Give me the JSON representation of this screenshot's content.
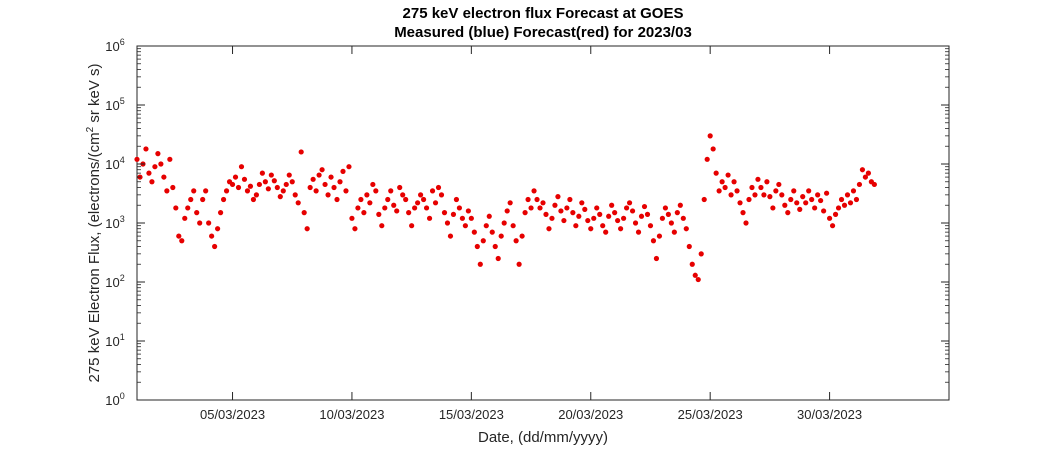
{
  "chart_data": {
    "type": "scatter",
    "title": "275 keV electron flux Forecast at GOES",
    "subtitle": "Measured (blue) Forecast(red) for 2023/03",
    "xlabel": "Date, (dd/mm/yyyy)",
    "ylabel_parts": [
      "275 keV Electron Flux, (electrons/(cm",
      "2",
      " sr keV s)"
    ],
    "y_scale": "log",
    "ylim": [
      1,
      1000000
    ],
    "xlim": [
      "2023-03-01",
      "2023-04-04"
    ],
    "x_ticks": [
      "05/03/2023",
      "10/03/2023",
      "15/03/2023",
      "20/03/2023",
      "25/03/2023",
      "30/03/2023"
    ],
    "y_ticks": [
      {
        "base": "10",
        "exp": "0"
      },
      {
        "base": "10",
        "exp": "1"
      },
      {
        "base": "10",
        "exp": "2"
      },
      {
        "base": "10",
        "exp": "3"
      },
      {
        "base": "10",
        "exp": "4"
      },
      {
        "base": "10",
        "exp": "5"
      },
      {
        "base": "10",
        "exp": "6"
      }
    ],
    "grid": false,
    "series": [
      {
        "color": "#e60000",
        "points": [
          [
            "2023-03-01 00:00",
            12000
          ],
          [
            "2023-03-01 03:00",
            6000
          ],
          [
            "2023-03-01 06:00",
            10000
          ],
          [
            "2023-03-01 09:00",
            18000
          ],
          [
            "2023-03-01 12:00",
            7000
          ],
          [
            "2023-03-01 15:00",
            5000
          ],
          [
            "2023-03-01 18:00",
            9000
          ],
          [
            "2023-03-01 21:00",
            15000
          ],
          [
            "2023-03-02 00:00",
            10000
          ],
          [
            "2023-03-02 03:00",
            6000
          ],
          [
            "2023-03-02 06:00",
            3500
          ],
          [
            "2023-03-02 09:00",
            12000
          ],
          [
            "2023-03-02 12:00",
            4000
          ],
          [
            "2023-03-02 15:00",
            1800
          ],
          [
            "2023-03-02 18:00",
            600
          ],
          [
            "2023-03-02 21:00",
            500
          ],
          [
            "2023-03-03 00:00",
            1200
          ],
          [
            "2023-03-03 03:00",
            1800
          ],
          [
            "2023-03-03 06:00",
            2500
          ],
          [
            "2023-03-03 09:00",
            3500
          ],
          [
            "2023-03-03 12:00",
            1500
          ],
          [
            "2023-03-03 15:00",
            1000
          ],
          [
            "2023-03-03 18:00",
            2500
          ],
          [
            "2023-03-03 21:00",
            3500
          ],
          [
            "2023-03-04 00:00",
            1000
          ],
          [
            "2023-03-04 03:00",
            600
          ],
          [
            "2023-03-04 06:00",
            400
          ],
          [
            "2023-03-04 09:00",
            800
          ],
          [
            "2023-03-04 12:00",
            1500
          ],
          [
            "2023-03-04 15:00",
            2500
          ],
          [
            "2023-03-04 18:00",
            3500
          ],
          [
            "2023-03-04 21:00",
            5000
          ],
          [
            "2023-03-05 00:00",
            4500
          ],
          [
            "2023-03-05 03:00",
            6000
          ],
          [
            "2023-03-05 06:00",
            4000
          ],
          [
            "2023-03-05 09:00",
            9000
          ],
          [
            "2023-03-05 12:00",
            5500
          ],
          [
            "2023-03-05 15:00",
            3500
          ],
          [
            "2023-03-05 18:00",
            4200
          ],
          [
            "2023-03-05 21:00",
            2500
          ],
          [
            "2023-03-06 00:00",
            3000
          ],
          [
            "2023-03-06 03:00",
            4500
          ],
          [
            "2023-03-06 06:00",
            7000
          ],
          [
            "2023-03-06 09:00",
            5000
          ],
          [
            "2023-03-06 12:00",
            3800
          ],
          [
            "2023-03-06 15:00",
            6500
          ],
          [
            "2023-03-06 18:00",
            5200
          ],
          [
            "2023-03-06 21:00",
            4000
          ],
          [
            "2023-03-07 00:00",
            2800
          ],
          [
            "2023-03-07 03:00",
            3500
          ],
          [
            "2023-03-07 06:00",
            4500
          ],
          [
            "2023-03-07 09:00",
            6500
          ],
          [
            "2023-03-07 12:00",
            5000
          ],
          [
            "2023-03-07 15:00",
            3000
          ],
          [
            "2023-03-07 18:00",
            2200
          ],
          [
            "2023-03-07 21:00",
            16000
          ],
          [
            "2023-03-08 00:00",
            1500
          ],
          [
            "2023-03-08 03:00",
            800
          ],
          [
            "2023-03-08 06:00",
            4000
          ],
          [
            "2023-03-08 09:00",
            5500
          ],
          [
            "2023-03-08 12:00",
            3500
          ],
          [
            "2023-03-08 15:00",
            6500
          ],
          [
            "2023-03-08 18:00",
            8000
          ],
          [
            "2023-03-08 21:00",
            4500
          ],
          [
            "2023-03-09 00:00",
            3000
          ],
          [
            "2023-03-09 03:00",
            6000
          ],
          [
            "2023-03-09 06:00",
            4000
          ],
          [
            "2023-03-09 09:00",
            2500
          ],
          [
            "2023-03-09 12:00",
            5000
          ],
          [
            "2023-03-09 15:00",
            7500
          ],
          [
            "2023-03-09 18:00",
            3500
          ],
          [
            "2023-03-09 21:00",
            9000
          ],
          [
            "2023-03-10 00:00",
            1200
          ],
          [
            "2023-03-10 03:00",
            800
          ],
          [
            "2023-03-10 06:00",
            1800
          ],
          [
            "2023-03-10 09:00",
            2500
          ],
          [
            "2023-03-10 12:00",
            1500
          ],
          [
            "2023-03-10 15:00",
            3000
          ],
          [
            "2023-03-10 18:00",
            2200
          ],
          [
            "2023-03-10 21:00",
            4500
          ],
          [
            "2023-03-11 00:00",
            3500
          ],
          [
            "2023-03-11 03:00",
            1400
          ],
          [
            "2023-03-11 06:00",
            900
          ],
          [
            "2023-03-11 09:00",
            1800
          ],
          [
            "2023-03-11 12:00",
            2500
          ],
          [
            "2023-03-11 15:00",
            3500
          ],
          [
            "2023-03-11 18:00",
            2000
          ],
          [
            "2023-03-11 21:00",
            1600
          ],
          [
            "2023-03-12 00:00",
            4000
          ],
          [
            "2023-03-12 03:00",
            3000
          ],
          [
            "2023-03-12 06:00",
            2500
          ],
          [
            "2023-03-12 09:00",
            1500
          ],
          [
            "2023-03-12 12:00",
            900
          ],
          [
            "2023-03-12 15:00",
            1800
          ],
          [
            "2023-03-12 18:00",
            2200
          ],
          [
            "2023-03-12 21:00",
            3000
          ],
          [
            "2023-03-13 00:00",
            2500
          ],
          [
            "2023-03-13 03:00",
            1800
          ],
          [
            "2023-03-13 06:00",
            1200
          ],
          [
            "2023-03-13 09:00",
            3500
          ],
          [
            "2023-03-13 12:00",
            2200
          ],
          [
            "2023-03-13 15:00",
            4000
          ],
          [
            "2023-03-13 18:00",
            3000
          ],
          [
            "2023-03-13 21:00",
            1500
          ],
          [
            "2023-03-14 00:00",
            1000
          ],
          [
            "2023-03-14 03:00",
            600
          ],
          [
            "2023-03-14 06:00",
            1400
          ],
          [
            "2023-03-14 09:00",
            2500
          ],
          [
            "2023-03-14 12:00",
            1800
          ],
          [
            "2023-03-14 15:00",
            1200
          ],
          [
            "2023-03-14 18:00",
            900
          ],
          [
            "2023-03-14 21:00",
            1600
          ],
          [
            "2023-03-15 00:00",
            1200
          ],
          [
            "2023-03-15 03:00",
            700
          ],
          [
            "2023-03-15 06:00",
            400
          ],
          [
            "2023-03-15 09:00",
            200
          ],
          [
            "2023-03-15 12:00",
            500
          ],
          [
            "2023-03-15 15:00",
            900
          ],
          [
            "2023-03-15 18:00",
            1300
          ],
          [
            "2023-03-15 21:00",
            700
          ],
          [
            "2023-03-16 00:00",
            400
          ],
          [
            "2023-03-16 03:00",
            250
          ],
          [
            "2023-03-16 06:00",
            600
          ],
          [
            "2023-03-16 09:00",
            1000
          ],
          [
            "2023-03-16 12:00",
            1600
          ],
          [
            "2023-03-16 15:00",
            2200
          ],
          [
            "2023-03-16 18:00",
            900
          ],
          [
            "2023-03-16 21:00",
            500
          ],
          [
            "2023-03-17 00:00",
            200
          ],
          [
            "2023-03-17 03:00",
            600
          ],
          [
            "2023-03-17 06:00",
            1500
          ],
          [
            "2023-03-17 09:00",
            2500
          ],
          [
            "2023-03-17 12:00",
            1800
          ],
          [
            "2023-03-17 15:00",
            3500
          ],
          [
            "2023-03-17 18:00",
            2500
          ],
          [
            "2023-03-17 21:00",
            1800
          ],
          [
            "2023-03-18 00:00",
            2200
          ],
          [
            "2023-03-18 03:00",
            1400
          ],
          [
            "2023-03-18 06:00",
            800
          ],
          [
            "2023-03-18 09:00",
            1200
          ],
          [
            "2023-03-18 12:00",
            2000
          ],
          [
            "2023-03-18 15:00",
            2800
          ],
          [
            "2023-03-18 18:00",
            1600
          ],
          [
            "2023-03-18 21:00",
            1100
          ],
          [
            "2023-03-19 00:00",
            1800
          ],
          [
            "2023-03-19 03:00",
            2500
          ],
          [
            "2023-03-19 06:00",
            1500
          ],
          [
            "2023-03-19 09:00",
            900
          ],
          [
            "2023-03-19 12:00",
            1300
          ],
          [
            "2023-03-19 15:00",
            2200
          ],
          [
            "2023-03-19 18:00",
            1700
          ],
          [
            "2023-03-19 21:00",
            1100
          ],
          [
            "2023-03-20 00:00",
            800
          ],
          [
            "2023-03-20 03:00",
            1200
          ],
          [
            "2023-03-20 06:00",
            1800
          ],
          [
            "2023-03-20 09:00",
            1400
          ],
          [
            "2023-03-20 12:00",
            900
          ],
          [
            "2023-03-20 15:00",
            700
          ],
          [
            "2023-03-20 18:00",
            1300
          ],
          [
            "2023-03-20 21:00",
            2000
          ],
          [
            "2023-03-21 00:00",
            1500
          ],
          [
            "2023-03-21 03:00",
            1100
          ],
          [
            "2023-03-21 06:00",
            800
          ],
          [
            "2023-03-21 09:00",
            1200
          ],
          [
            "2023-03-21 12:00",
            1800
          ],
          [
            "2023-03-21 15:00",
            2200
          ],
          [
            "2023-03-21 18:00",
            1600
          ],
          [
            "2023-03-21 21:00",
            1000
          ],
          [
            "2023-03-22 00:00",
            700
          ],
          [
            "2023-03-22 03:00",
            1300
          ],
          [
            "2023-03-22 06:00",
            1900
          ],
          [
            "2023-03-22 09:00",
            1400
          ],
          [
            "2023-03-22 12:00",
            900
          ],
          [
            "2023-03-22 15:00",
            500
          ],
          [
            "2023-03-22 18:00",
            250
          ],
          [
            "2023-03-22 21:00",
            600
          ],
          [
            "2023-03-23 00:00",
            1200
          ],
          [
            "2023-03-23 03:00",
            1800
          ],
          [
            "2023-03-23 06:00",
            1400
          ],
          [
            "2023-03-23 09:00",
            1000
          ],
          [
            "2023-03-23 12:00",
            700
          ],
          [
            "2023-03-23 15:00",
            1500
          ],
          [
            "2023-03-23 18:00",
            2000
          ],
          [
            "2023-03-23 21:00",
            1200
          ],
          [
            "2023-03-24 00:00",
            800
          ],
          [
            "2023-03-24 03:00",
            400
          ],
          [
            "2023-03-24 06:00",
            200
          ],
          [
            "2023-03-24 09:00",
            130
          ],
          [
            "2023-03-24 12:00",
            110
          ],
          [
            "2023-03-24 15:00",
            300
          ],
          [
            "2023-03-24 18:00",
            2500
          ],
          [
            "2023-03-24 21:00",
            12000
          ],
          [
            "2023-03-25 00:00",
            30000
          ],
          [
            "2023-03-25 03:00",
            18000
          ],
          [
            "2023-03-25 06:00",
            7000
          ],
          [
            "2023-03-25 09:00",
            3500
          ],
          [
            "2023-03-25 12:00",
            5000
          ],
          [
            "2023-03-25 15:00",
            4000
          ],
          [
            "2023-03-25 18:00",
            6500
          ],
          [
            "2023-03-25 21:00",
            3000
          ],
          [
            "2023-03-26 00:00",
            5000
          ],
          [
            "2023-03-26 03:00",
            3500
          ],
          [
            "2023-03-26 06:00",
            2200
          ],
          [
            "2023-03-26 09:00",
            1500
          ],
          [
            "2023-03-26 12:00",
            1000
          ],
          [
            "2023-03-26 15:00",
            2500
          ],
          [
            "2023-03-26 18:00",
            4000
          ],
          [
            "2023-03-26 21:00",
            3000
          ],
          [
            "2023-03-27 00:00",
            5500
          ],
          [
            "2023-03-27 03:00",
            4000
          ],
          [
            "2023-03-27 06:00",
            3000
          ],
          [
            "2023-03-27 09:00",
            5000
          ],
          [
            "2023-03-27 12:00",
            2800
          ],
          [
            "2023-03-27 15:00",
            1800
          ],
          [
            "2023-03-27 18:00",
            3500
          ],
          [
            "2023-03-27 21:00",
            4500
          ],
          [
            "2023-03-28 00:00",
            3000
          ],
          [
            "2023-03-28 03:00",
            2000
          ],
          [
            "2023-03-28 06:00",
            1500
          ],
          [
            "2023-03-28 09:00",
            2500
          ],
          [
            "2023-03-28 12:00",
            3500
          ],
          [
            "2023-03-28 15:00",
            2200
          ],
          [
            "2023-03-28 18:00",
            1700
          ],
          [
            "2023-03-28 21:00",
            2800
          ],
          [
            "2023-03-29 00:00",
            2200
          ],
          [
            "2023-03-29 03:00",
            3500
          ],
          [
            "2023-03-29 06:00",
            2500
          ],
          [
            "2023-03-29 09:00",
            1800
          ],
          [
            "2023-03-29 12:00",
            3000
          ],
          [
            "2023-03-29 15:00",
            2400
          ],
          [
            "2023-03-29 18:00",
            1600
          ],
          [
            "2023-03-29 21:00",
            3200
          ],
          [
            "2023-03-30 00:00",
            1200
          ],
          [
            "2023-03-30 03:00",
            900
          ],
          [
            "2023-03-30 06:00",
            1400
          ],
          [
            "2023-03-30 09:00",
            1800
          ],
          [
            "2023-03-30 12:00",
            2500
          ],
          [
            "2023-03-30 15:00",
            2000
          ],
          [
            "2023-03-30 18:00",
            3000
          ],
          [
            "2023-03-30 21:00",
            2200
          ],
          [
            "2023-03-31 00:00",
            3500
          ],
          [
            "2023-03-31 03:00",
            2500
          ],
          [
            "2023-03-31 06:00",
            4500
          ],
          [
            "2023-03-31 09:00",
            8000
          ],
          [
            "2023-03-31 12:00",
            6000
          ],
          [
            "2023-03-31 15:00",
            7000
          ],
          [
            "2023-03-31 18:00",
            5000
          ],
          [
            "2023-03-31 21:00",
            4500
          ]
        ]
      }
    ]
  }
}
